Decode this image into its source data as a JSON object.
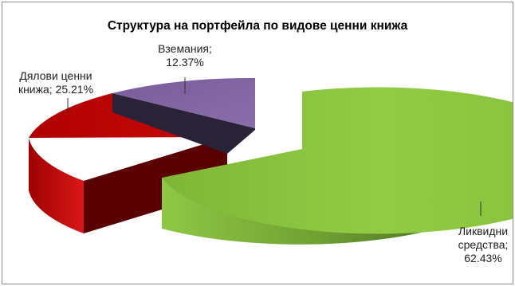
{
  "chart_data": {
    "type": "pie",
    "title": "Структура на портфейла по видове ценни книжа",
    "slices": [
      {
        "label_lines": [
          "Вземания;",
          "12.37%"
        ],
        "name": "Вземания",
        "value": 12.37,
        "color": "#8064a2"
      },
      {
        "label_lines": [
          "Ликвидни",
          "средства;",
          "62.43%"
        ],
        "name": "Ликвидни средства",
        "value": 62.43,
        "color": "#8cc63e"
      },
      {
        "label_lines": [
          "Дялови ценни",
          "книжа; 25.21%"
        ],
        "name": "Дялови ценни книжа",
        "value": 25.21,
        "color": "#c00000"
      }
    ],
    "legend": "none",
    "style": "3d-exploded"
  }
}
